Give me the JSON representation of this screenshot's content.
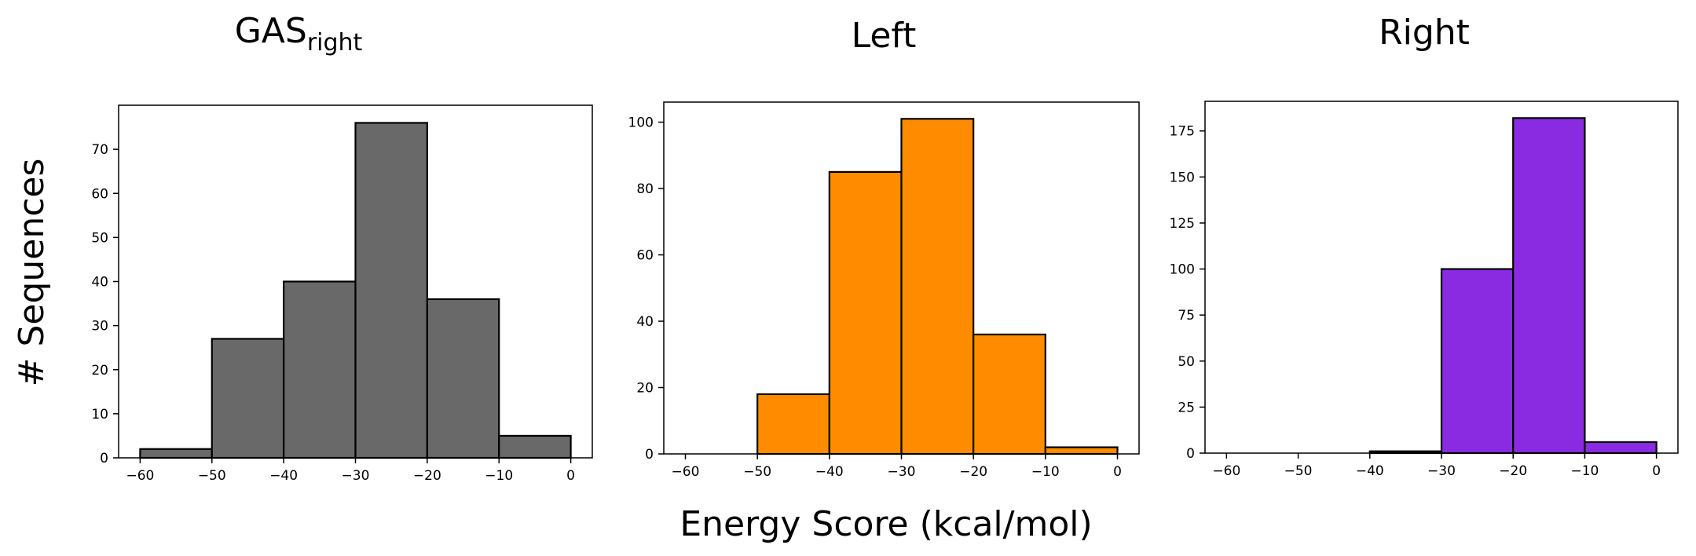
{
  "figure": {
    "ylabel": "# Sequences",
    "xlabel": "Energy Score (kcal/mol)"
  },
  "chart_data": [
    {
      "type": "bar",
      "title": "GAS",
      "title_subscript": "right",
      "color": "#696969",
      "edge_color": "#000000",
      "bin_edges": [
        -60,
        -50,
        -40,
        -30,
        -20,
        -10,
        0
      ],
      "values": [
        2,
        27,
        40,
        76,
        36,
        5
      ],
      "xlim": [
        -63,
        3
      ],
      "ylim": [
        0,
        80
      ],
      "xticks": [
        -60,
        -50,
        -40,
        -30,
        -20,
        -10,
        0
      ],
      "yticks": [
        0,
        10,
        20,
        30,
        40,
        50,
        60,
        70
      ],
      "grid": false
    },
    {
      "type": "bar",
      "title": "Left",
      "title_subscript": "",
      "color": "#ff8c00",
      "edge_color": "#000000",
      "bin_edges": [
        -60,
        -50,
        -40,
        -30,
        -20,
        -10,
        0
      ],
      "values": [
        0,
        18,
        85,
        101,
        36,
        2
      ],
      "xlim": [
        -63,
        3
      ],
      "ylim": [
        0,
        106.05
      ],
      "xticks": [
        -60,
        -50,
        -40,
        -30,
        -20,
        -10,
        0
      ],
      "yticks": [
        0,
        20,
        40,
        60,
        80,
        100
      ],
      "grid": false
    },
    {
      "type": "bar",
      "title": "Right",
      "title_subscript": "",
      "color": "#8a2be2",
      "edge_color": "#000000",
      "bin_edges": [
        -60,
        -50,
        -40,
        -30,
        -20,
        -10,
        0
      ],
      "values": [
        0,
        0,
        1,
        100,
        182,
        6
      ],
      "xlim": [
        -63,
        3
      ],
      "ylim": [
        0,
        191.1
      ],
      "xticks": [
        -60,
        -50,
        -40,
        -30,
        -20,
        -10,
        0
      ],
      "yticks": [
        0,
        25,
        50,
        75,
        100,
        125,
        150,
        175
      ],
      "grid": false
    }
  ]
}
